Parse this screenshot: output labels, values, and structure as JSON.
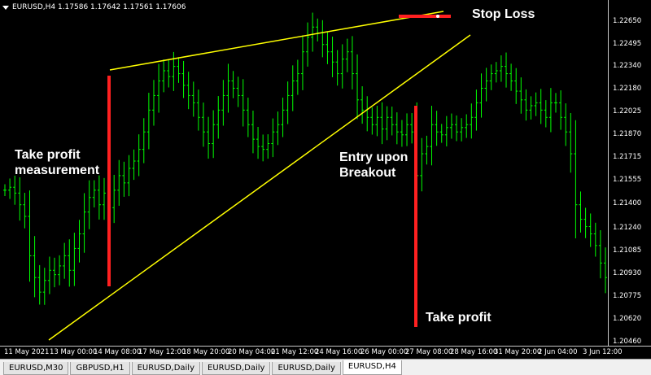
{
  "chart_header": {
    "text": "EURUSD,H4  1.17586 1.17642 1.17561 1.17606"
  },
  "annotations": {
    "stop_loss": "Stop Loss",
    "take_profit_measurement_l1": "Take profit",
    "take_profit_measurement_l2": "measurement",
    "entry_l1": "Entry upon",
    "entry_l2": "Breakout",
    "take_profit": "Take profit"
  },
  "price_labels": [
    "1.22650",
    "1.22495",
    "1.22340",
    "1.22180",
    "1.22025",
    "1.21870",
    "1.21715",
    "1.21555",
    "1.21400",
    "1.21240",
    "1.21085",
    "1.20930",
    "1.20775",
    "1.20620",
    "1.20460"
  ],
  "time_labels": [
    "11 May 2021",
    "13 May 00:00",
    "14 May 08:00",
    "17 May 12:00",
    "18 May 20:00",
    "20 May 04:00",
    "21 May 12:00",
    "24 May 16:00",
    "26 May 00:00",
    "27 May 08:00",
    "28 May 16:00",
    "31 May 20:00",
    "2 Jun 04:00",
    "3 Jun 12:00"
  ],
  "tabs": [
    {
      "label": "EURUSD,M30",
      "active": false
    },
    {
      "label": "GBPUSD,H1",
      "active": false
    },
    {
      "label": "EURUSD,Daily",
      "active": false
    },
    {
      "label": "EURUSD,Daily",
      "active": false
    },
    {
      "label": "EURUSD,Daily",
      "active": false
    },
    {
      "label": "EURUSD,H4",
      "active": true
    }
  ],
  "colors": {
    "background": "#000000",
    "bar": "#00ff00",
    "wedge_line": "#ffff00",
    "marker": "#ff2020",
    "text": "#ffffff"
  },
  "chart_data": {
    "type": "ohlc",
    "symbol": "EURUSD",
    "timeframe": "H4",
    "y_range": [
      1.2046,
      1.2275
    ],
    "series_close": [
      1.215,
      1.2152,
      1.2148,
      1.214,
      1.2132,
      1.2105,
      1.209,
      1.208,
      1.2088,
      1.2095,
      1.2092,
      1.2098,
      1.2105,
      1.2095,
      1.211,
      1.212,
      1.2135,
      1.2145,
      1.215,
      1.214,
      1.2148,
      1.2138,
      1.215,
      1.216,
      1.2155,
      1.2165,
      1.217,
      1.2178,
      1.219,
      1.2205,
      1.2215,
      1.2225,
      1.2232,
      1.2228,
      1.2235,
      1.223,
      1.2222,
      1.2215,
      1.221,
      1.22,
      1.219,
      1.2182,
      1.2195,
      1.2205,
      1.2215,
      1.2225,
      1.222,
      1.2215,
      1.2205,
      1.2195,
      1.2185,
      1.218,
      1.2178,
      1.2182,
      1.219,
      1.2195,
      1.2205,
      1.2215,
      1.2225,
      1.223,
      1.2245,
      1.2255,
      1.2262,
      1.2258,
      1.225,
      1.2245,
      1.2238,
      1.223,
      1.224,
      1.2245,
      1.223,
      1.2212,
      1.2205,
      1.22,
      1.2195,
      1.22,
      1.2192,
      1.22,
      1.2195,
      1.219,
      1.2188,
      1.2195,
      1.219,
      1.216,
      1.2175,
      1.218,
      1.2195,
      1.219,
      1.2188,
      1.2193,
      1.2195,
      1.219,
      1.2193,
      1.2195,
      1.22,
      1.221,
      1.222,
      1.2225,
      1.223,
      1.2232,
      1.2235,
      1.223,
      1.2225,
      1.2218,
      1.2212,
      1.2205,
      1.2208,
      1.221,
      1.2205,
      1.22,
      1.221,
      1.221,
      1.22,
      1.219,
      1.2175,
      1.214,
      1.213,
      1.2125,
      1.212,
      1.2112,
      1.21,
      1.209
    ],
    "wedge_upper": {
      "from": [
        1.2228,
        1.2228
      ],
      "to_index": 0
    },
    "markers": {
      "take_profit_measurement_top": 1.2228,
      "take_profit_measurement_bottom": 1.2088,
      "stop_loss": 1.2266,
      "entry": 1.2203,
      "take_profit": 1.2058
    }
  }
}
